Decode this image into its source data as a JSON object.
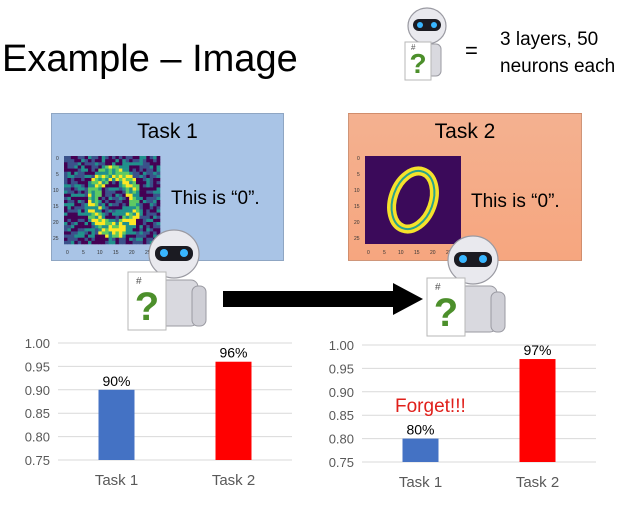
{
  "slide": {
    "title": "Example – Image",
    "equals": "=",
    "network_desc_line1": "3 layers, 50",
    "network_desc_line2": "neurons each"
  },
  "tasks": [
    {
      "title": "Task 1",
      "caption": "This is “0”.",
      "panel_color": "#a9c4e6"
    },
    {
      "title": "Task 2",
      "caption": "This is “0”.",
      "panel_color": "#f6a67f"
    }
  ],
  "icons": {
    "robot": "robot-holding-question-card-icon",
    "arrow": "right-arrow-icon",
    "question": "question-mark-icon"
  },
  "annotations": {
    "forget": "Forget!!!"
  },
  "chart_data": [
    {
      "type": "bar",
      "categories": [
        "Task 1",
        "Task 2"
      ],
      "values": [
        0.9,
        0.96
      ],
      "data_labels": [
        "90%",
        "96%"
      ],
      "colors": [
        "#4472c4",
        "#ff0000"
      ],
      "ylim": [
        0.75,
        1.0
      ],
      "yticks": [
        "0.75",
        "0.80",
        "0.85",
        "0.90",
        "0.95",
        "1.00"
      ],
      "grid": true
    },
    {
      "type": "bar",
      "categories": [
        "Task 1",
        "Task 2"
      ],
      "values": [
        0.8,
        0.97
      ],
      "data_labels": [
        "80%",
        "97%"
      ],
      "colors": [
        "#4472c4",
        "#ff0000"
      ],
      "ylim": [
        0.75,
        1.0
      ],
      "yticks": [
        "0.75",
        "0.80",
        "0.85",
        "0.90",
        "0.95",
        "1.00"
      ],
      "grid": true
    }
  ]
}
